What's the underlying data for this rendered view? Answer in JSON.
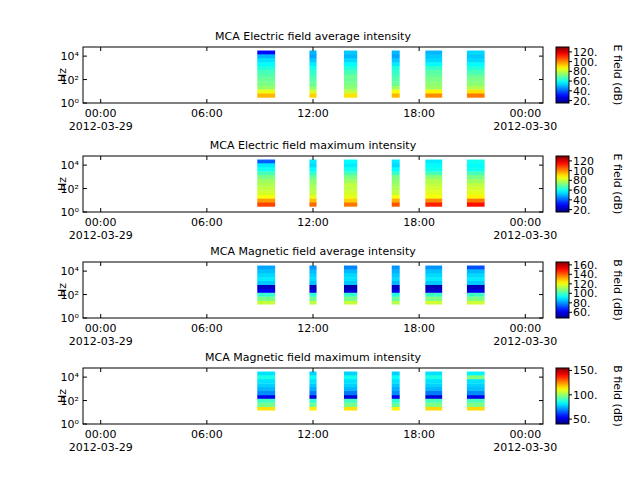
{
  "chart_data": [
    {
      "type": "heatmap",
      "title": "MCA  Electric field average intensity",
      "ylabel": "Hz",
      "log": "y",
      "xlim": [
        -1,
        25
      ],
      "xticks": [
        {
          "value": 0,
          "label": "00:00",
          "sublabel": "2012-03-29"
        },
        {
          "value": 6,
          "label": "06:00"
        },
        {
          "value": 12,
          "label": "12:00"
        },
        {
          "value": 18,
          "label": "18:00"
        },
        {
          "value": 24,
          "label": "00:00",
          "sublabel": "2012-03-30"
        }
      ],
      "ylim": [
        1,
        60000
      ],
      "yticks": [
        {
          "value": 1,
          "label": "10⁰"
        },
        {
          "value": 100,
          "label": "10²"
        },
        {
          "value": 10000,
          "label": "10⁴"
        }
      ],
      "x_start": [
        8.85,
        11.8,
        13.75,
        16.45,
        18.35,
        20.7
      ],
      "x_end": [
        9.86,
        12.2,
        14.5,
        16.9,
        19.3,
        21.7
      ],
      "y_bins": [
        3,
        7,
        15,
        30,
        70,
        150,
        300,
        700,
        1500,
        3000,
        7000,
        15000,
        30000
      ],
      "cells": [
        [
          95,
          85,
          75,
          72,
          70,
          68,
          66,
          62,
          58,
          55,
          50,
          30
        ],
        [
          92,
          82,
          74,
          70,
          68,
          66,
          64,
          60,
          56,
          52,
          48,
          50
        ],
        [
          90,
          80,
          74,
          72,
          70,
          70,
          66,
          62,
          58,
          54,
          50,
          52
        ],
        [
          95,
          86,
          76,
          70,
          68,
          66,
          64,
          62,
          56,
          52,
          48,
          50
        ],
        [
          100,
          88,
          76,
          74,
          72,
          70,
          68,
          64,
          58,
          54,
          52,
          50
        ],
        [
          102,
          90,
          78,
          74,
          72,
          70,
          66,
          62,
          58,
          54,
          52,
          54
        ]
      ],
      "colorbar": {
        "label": "E field (dB)",
        "range": [
          15,
          130
        ],
        "ticks": [
          {
            "value": 20,
            "label": "20."
          },
          {
            "value": 40,
            "label": "40."
          },
          {
            "value": 60,
            "label": "60."
          },
          {
            "value": 80,
            "label": "80."
          },
          {
            "value": 100,
            "label": "100."
          },
          {
            "value": 120,
            "label": "120."
          }
        ]
      }
    },
    {
      "type": "heatmap",
      "title": "MCA  Electric field maximum intensity",
      "ylabel": "Hz",
      "log": "y",
      "xlim": [
        -1,
        25
      ],
      "xticks": [
        {
          "value": 0,
          "label": "00:00",
          "sublabel": "2012-03-29"
        },
        {
          "value": 6,
          "label": "06:00"
        },
        {
          "value": 12,
          "label": "12:00"
        },
        {
          "value": 18,
          "label": "18:00"
        },
        {
          "value": 24,
          "label": "00:00",
          "sublabel": "2012-03-30"
        }
      ],
      "ylim": [
        1,
        60000
      ],
      "yticks": [
        {
          "value": 1,
          "label": "10⁰"
        },
        {
          "value": 100,
          "label": "10²"
        },
        {
          "value": 10000,
          "label": "10⁴"
        }
      ],
      "x_start": [
        8.85,
        11.8,
        13.75,
        16.45,
        18.35,
        20.7
      ],
      "x_end": [
        9.86,
        12.2,
        14.5,
        16.9,
        19.3,
        21.7
      ],
      "y_bins": [
        3,
        7,
        15,
        30,
        70,
        150,
        300,
        700,
        1500,
        3000,
        7000,
        15000,
        30000
      ],
      "cells": [
        [
          108,
          98,
          86,
          82,
          80,
          78,
          76,
          72,
          66,
          60,
          56,
          40
        ],
        [
          104,
          94,
          84,
          80,
          78,
          76,
          74,
          70,
          64,
          58,
          54,
          56
        ],
        [
          102,
          92,
          84,
          82,
          80,
          80,
          76,
          72,
          66,
          60,
          56,
          58
        ],
        [
          106,
          96,
          86,
          80,
          78,
          76,
          74,
          72,
          64,
          58,
          54,
          56
        ],
        [
          112,
          100,
          86,
          84,
          82,
          80,
          78,
          74,
          66,
          60,
          58,
          56
        ],
        [
          114,
          102,
          88,
          84,
          82,
          80,
          76,
          72,
          66,
          60,
          58,
          60
        ]
      ],
      "colorbar": {
        "label": "E field (dB)",
        "range": [
          15,
          130
        ],
        "ticks": [
          {
            "value": 20,
            "label": "20."
          },
          {
            "value": 40,
            "label": "40"
          },
          {
            "value": 60,
            "label": "60"
          },
          {
            "value": 80,
            "label": "80"
          },
          {
            "value": 100,
            "label": "100"
          },
          {
            "value": 120,
            "label": "120"
          }
        ]
      }
    },
    {
      "type": "heatmap",
      "title": "MCA  Magnetic field average intensity",
      "ylabel": "Hz",
      "log": "y",
      "xlim": [
        -1,
        25
      ],
      "xticks": [
        {
          "value": 0,
          "label": "00:00",
          "sublabel": "2012-03-29"
        },
        {
          "value": 6,
          "label": "06:00"
        },
        {
          "value": 12,
          "label": "12:00"
        },
        {
          "value": 18,
          "label": "18:00"
        },
        {
          "value": 24,
          "label": "00:00",
          "sublabel": "2012-03-30"
        }
      ],
      "ylim": [
        1,
        60000
      ],
      "yticks": [
        {
          "value": 1,
          "label": "10⁰"
        },
        {
          "value": 100,
          "label": "10²"
        },
        {
          "value": 10000,
          "label": "10⁴"
        }
      ],
      "x_start": [
        8.85,
        11.8,
        13.75,
        16.45,
        18.35,
        20.7
      ],
      "x_end": [
        9.86,
        12.2,
        14.5,
        16.9,
        19.3,
        21.7
      ],
      "y_bins": [
        3,
        7,
        15,
        30,
        70,
        150,
        300,
        700,
        1500,
        3000,
        7000,
        15000,
        30000
      ],
      "cells": [
        [
          null,
          null,
          115,
          106,
          98,
          62,
          56,
          86,
          90,
          88,
          85,
          82
        ],
        [
          null,
          null,
          114,
          105,
          97,
          60,
          55,
          85,
          88,
          87,
          84,
          80
        ],
        [
          null,
          null,
          115,
          106,
          98,
          58,
          54,
          86,
          89,
          88,
          84,
          78
        ],
        [
          null,
          null,
          113,
          104,
          96,
          60,
          56,
          84,
          88,
          86,
          83,
          80
        ],
        [
          null,
          null,
          116,
          107,
          99,
          58,
          54,
          86,
          90,
          88,
          85,
          80
        ],
        [
          null,
          null,
          116,
          107,
          99,
          60,
          55,
          86,
          90,
          88,
          84,
          72
        ]
      ],
      "colorbar": {
        "label": "B field (dB)",
        "range": [
          48,
          166
        ],
        "ticks": [
          {
            "value": 60,
            "label": "60."
          },
          {
            "value": 80,
            "label": "80."
          },
          {
            "value": 100,
            "label": "100."
          },
          {
            "value": 120,
            "label": "120."
          },
          {
            "value": 140,
            "label": "140."
          },
          {
            "value": 160,
            "label": "160."
          }
        ]
      }
    },
    {
      "type": "heatmap",
      "title": "MCA  Magnetic field maximum intensity",
      "ylabel": "Hz",
      "log": "y",
      "xlim": [
        -1,
        25
      ],
      "xticks": [
        {
          "value": 0,
          "label": "00:00",
          "sublabel": "2012-03-29"
        },
        {
          "value": 6,
          "label": "06:00"
        },
        {
          "value": 12,
          "label": "12:00"
        },
        {
          "value": 18,
          "label": "18:00"
        },
        {
          "value": 24,
          "label": "00:00",
          "sublabel": "2012-03-30"
        }
      ],
      "ylim": [
        1,
        60000
      ],
      "yticks": [
        {
          "value": 1,
          "label": "10⁰"
        },
        {
          "value": 100,
          "label": "10²"
        },
        {
          "value": 10000,
          "label": "10⁴"
        }
      ],
      "x_start": [
        8.85,
        11.8,
        13.75,
        16.45,
        18.35,
        20.7
      ],
      "x_end": [
        9.86,
        12.2,
        14.5,
        16.9,
        19.3,
        21.7
      ],
      "y_bins": [
        3,
        7,
        15,
        30,
        70,
        150,
        300,
        700,
        1500,
        3000,
        7000,
        15000,
        30000
      ],
      "cells": [
        [
          null,
          null,
          115,
          96,
          90,
          52,
          70,
          75,
          78,
          80,
          86,
          80
        ],
        [
          null,
          null,
          114,
          95,
          88,
          50,
          68,
          74,
          77,
          80,
          84,
          78
        ],
        [
          null,
          null,
          115,
          96,
          90,
          50,
          68,
          75,
          78,
          80,
          85,
          78
        ],
        [
          null,
          null,
          113,
          94,
          88,
          52,
          70,
          74,
          77,
          80,
          84,
          78
        ],
        [
          null,
          null,
          116,
          97,
          91,
          50,
          68,
          75,
          78,
          80,
          86,
          80
        ],
        [
          null,
          null,
          116,
          97,
          91,
          52,
          70,
          76,
          78,
          80,
          98,
          82
        ]
      ],
      "colorbar": {
        "label": "B field (dB)",
        "range": [
          40,
          155
        ],
        "ticks": [
          {
            "value": 50,
            "label": "50."
          },
          {
            "value": 100,
            "label": "100."
          },
          {
            "value": 150,
            "label": "150."
          }
        ]
      }
    }
  ]
}
